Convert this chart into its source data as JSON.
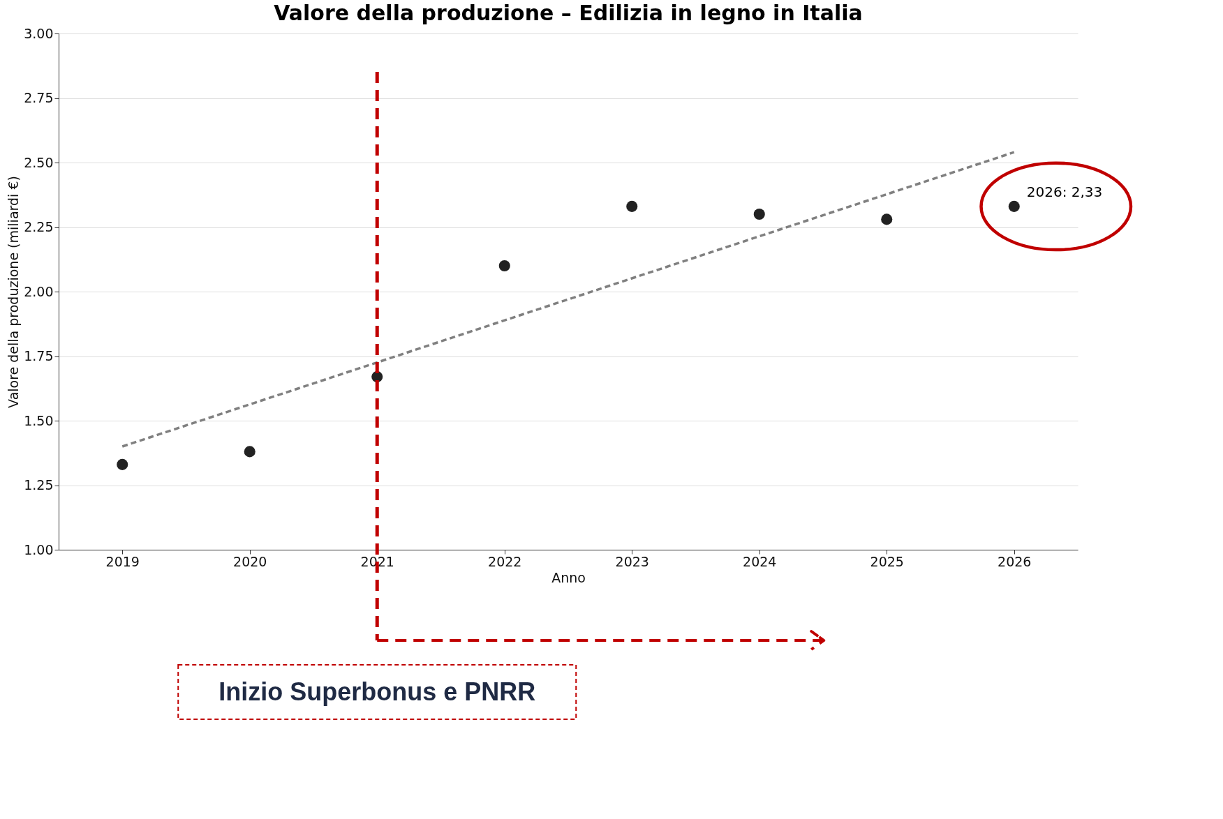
{
  "chart_data": {
    "type": "scatter",
    "title": "Valore della produzione – Edilizia in legno in Italia",
    "xlabel": "Anno",
    "ylabel": "Valore della produzione (miliardi €)",
    "x": [
      2019,
      2020,
      2021,
      2022,
      2023,
      2024,
      2025,
      2026
    ],
    "series": [
      {
        "color": "#222222",
        "marker": "circle",
        "values": [
          1.33,
          1.38,
          1.67,
          2.1,
          2.33,
          2.3,
          2.28,
          2.33
        ]
      },
      {
        "type": "line",
        "color": "#808080",
        "line_style": "dashed",
        "x": [
          2019,
          2026
        ],
        "values": [
          1.4,
          2.54
        ]
      }
    ],
    "xlim": [
      2018.5,
      2026.5
    ],
    "xticks": [
      2019,
      2020,
      2021,
      2022,
      2023,
      2024,
      2025,
      2026
    ],
    "ylim": [
      1.0,
      3.0
    ],
    "yticks": [
      {
        "value": 1.0,
        "label": "1.00"
      },
      {
        "value": 1.25,
        "label": "1.25"
      },
      {
        "value": 1.5,
        "label": "1.50"
      },
      {
        "value": 1.75,
        "label": "1.75"
      },
      {
        "value": 2.0,
        "label": "2.00"
      },
      {
        "value": 2.25,
        "label": "2.25"
      },
      {
        "value": 2.5,
        "label": "2.50"
      },
      {
        "value": 2.75,
        "label": "2.75"
      },
      {
        "value": 3.0,
        "label": "3.00"
      }
    ],
    "grid": "y",
    "ref_lines": [
      {
        "axis": "x",
        "value": 2021,
        "label": "Inizio Superbonus e PNRR",
        "color": "#c00000",
        "line_style": "dashed"
      }
    ],
    "annotations": [
      {
        "text": "2026: 2,33",
        "x": 2026,
        "y": 2.33
      }
    ]
  }
}
